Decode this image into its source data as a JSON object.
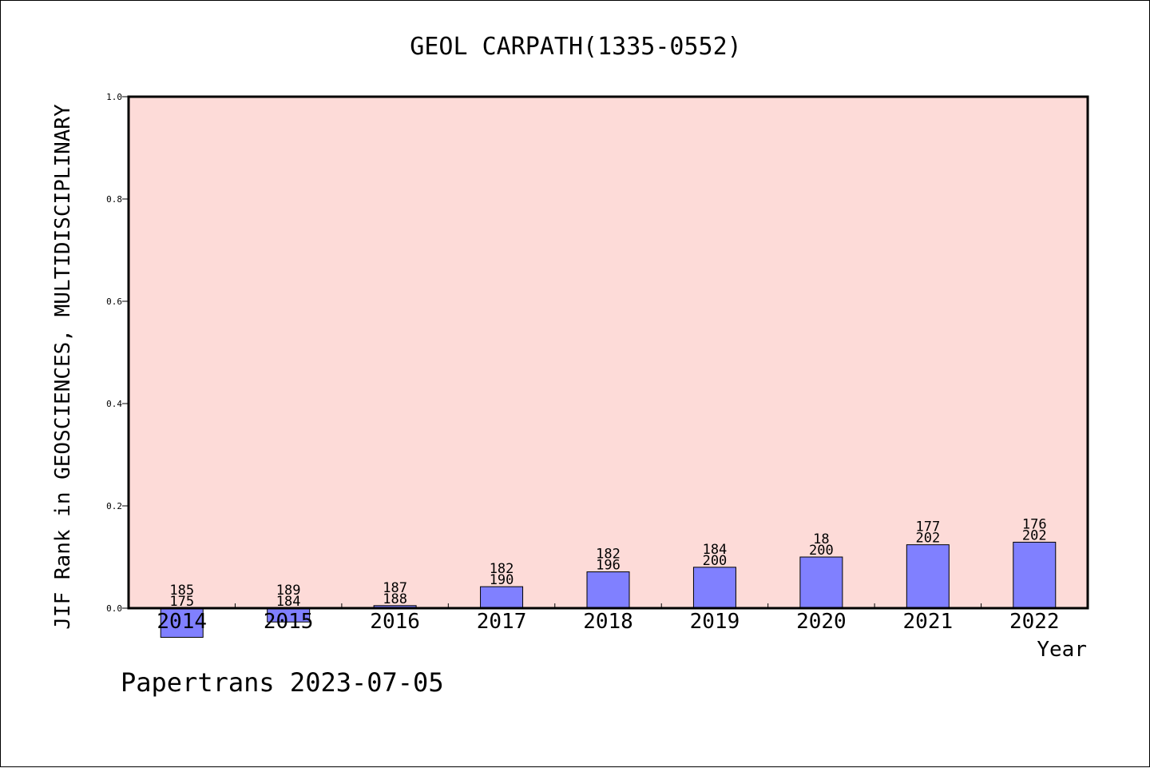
{
  "chart_data": {
    "type": "bar",
    "title": "GEOL CARPATH(1335-0552)",
    "xlabel": "Year",
    "ylabel": "JIF Rank in GEOSCIENCES, MULTIDISCIPLINARY",
    "ylim": [
      0.0,
      1.0
    ],
    "yticks": [
      "0.0",
      "0.2",
      "0.4",
      "0.6",
      "0.8",
      "1.0"
    ],
    "categories": [
      "2014",
      "2015",
      "2016",
      "2017",
      "2018",
      "2019",
      "2020",
      "2021",
      "2022"
    ],
    "values": [
      -0.057,
      -0.027,
      0.005,
      0.042,
      0.071,
      0.08,
      0.1,
      0.124,
      0.129
    ],
    "label_top": [
      "185",
      "189",
      "187",
      "182",
      "182",
      "184",
      "18",
      "177",
      "176"
    ],
    "label_bottom": [
      "175",
      "184",
      "188",
      "190",
      "196",
      "200",
      "200",
      "202",
      "202"
    ],
    "grid": false,
    "colors": {
      "plot_bg": "#fddbd8",
      "bar": "#8080ff",
      "bar_edge": "#000000"
    }
  },
  "footer": {
    "watermark": "Papertrans 2023-07-05"
  }
}
